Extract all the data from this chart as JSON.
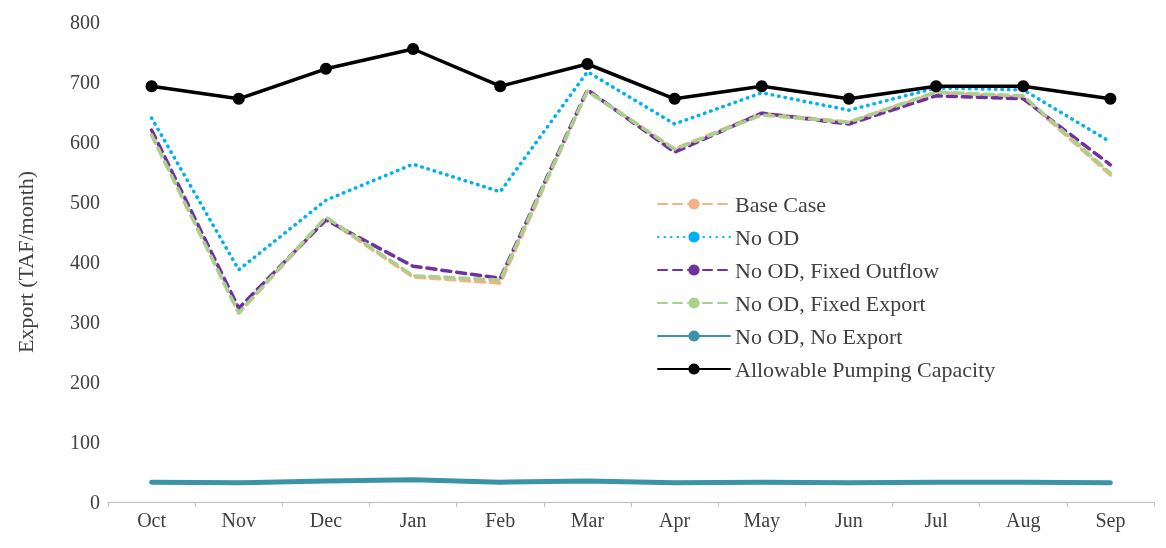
{
  "chart_data": {
    "type": "line",
    "ylabel": "Export (TAF/month)",
    "categories": [
      "Oct",
      "Nov",
      "Dec",
      "Jan",
      "Feb",
      "Mar",
      "Apr",
      "May",
      "Jun",
      "Jul",
      "Aug",
      "Sep"
    ],
    "ylim": [
      0,
      800
    ],
    "yticks": [
      0,
      100,
      200,
      300,
      400,
      500,
      600,
      700,
      800
    ],
    "grid": false,
    "legend": "right",
    "series": [
      {
        "name": "Base Case",
        "color": "#f4b183",
        "line_style": "dashed",
        "marker": "none",
        "values": [
          612,
          315,
          473,
          375,
          365,
          685,
          588,
          648,
          633,
          683,
          675,
          545
        ]
      },
      {
        "name": "No OD",
        "color": "#00b0f0",
        "line_style": "dotted",
        "marker": "none",
        "values": [
          640,
          387,
          503,
          563,
          517,
          717,
          630,
          682,
          653,
          690,
          687,
          600
        ]
      },
      {
        "name": "No OD, Fixed Outflow",
        "color": "#7030a0",
        "line_style": "dashed",
        "marker": "none",
        "values": [
          620,
          323,
          470,
          393,
          373,
          687,
          583,
          648,
          630,
          677,
          672,
          562
        ]
      },
      {
        "name": "No OD, Fixed Export",
        "color": "#a9d18e",
        "line_style": "dashed",
        "marker": "none",
        "values": [
          612,
          315,
          475,
          377,
          370,
          685,
          588,
          645,
          633,
          683,
          677,
          548
        ]
      },
      {
        "name": "No OD, No Export",
        "color": "#3a93a8",
        "line_style": "solid",
        "marker": "none",
        "values": [
          33,
          32,
          35,
          37,
          33,
          35,
          32,
          33,
          32,
          33,
          33,
          32
        ]
      },
      {
        "name": "Allowable Pumping Capacity",
        "color": "#000000",
        "line_style": "solid",
        "marker": "circle",
        "values": [
          693,
          672,
          722,
          755,
          693,
          730,
          672,
          693,
          672,
          693,
          693,
          672
        ]
      }
    ]
  }
}
